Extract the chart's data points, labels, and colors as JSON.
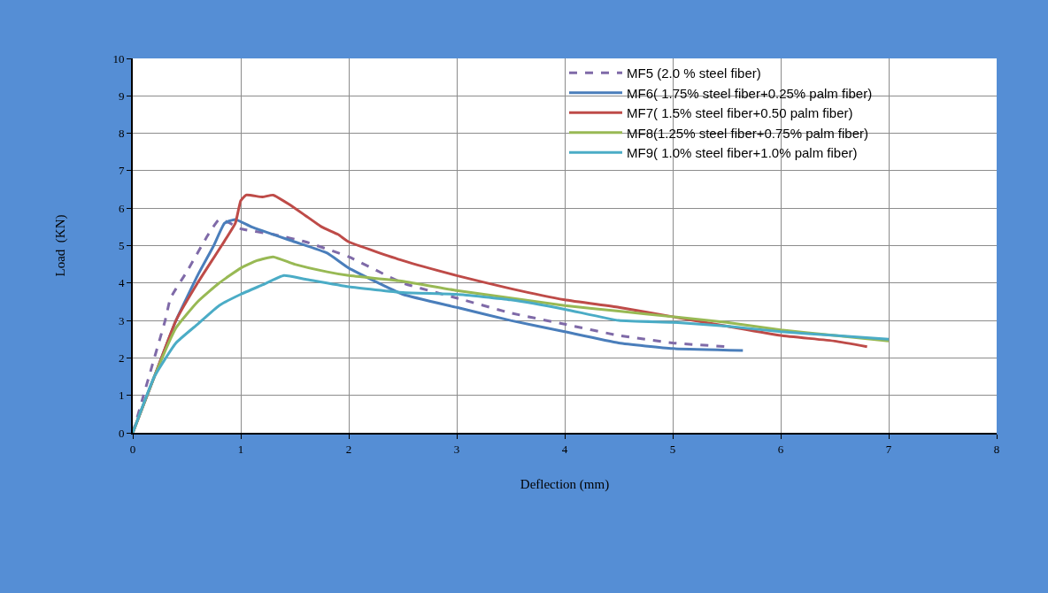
{
  "chart_data": {
    "type": "line",
    "xlabel": "Deflection (mm)",
    "ylabel": "Load  (KN)",
    "xlim": [
      0,
      8
    ],
    "xticks": [
      0,
      1,
      2,
      3,
      4,
      5,
      6,
      7,
      8
    ],
    "ylim": [
      0,
      10
    ],
    "yticks": [
      0,
      1,
      2,
      3,
      4,
      5,
      6,
      7,
      8,
      9,
      10
    ],
    "grid": true,
    "legend": "top right",
    "marker": "none",
    "series": [
      {
        "name": "MF5 (2.0 % steel fiber)",
        "color": "#7f6aa8",
        "line_style": "dashed",
        "x": [
          0,
          0.1,
          0.2,
          0.3,
          0.35,
          0.5,
          0.7,
          0.8,
          0.9,
          1.0,
          1.3,
          1.6,
          2,
          2.5,
          3,
          3.5,
          4,
          4.5,
          5,
          5.5
        ],
        "values": [
          0,
          1,
          2,
          3,
          3.6,
          4.3,
          5.3,
          5.7,
          5.6,
          5.45,
          5.3,
          5.1,
          4.7,
          4.0,
          3.6,
          3.2,
          2.9,
          2.6,
          2.4,
          2.3
        ]
      },
      {
        "name": "MF6( 1.75% steel fiber+0.25% palm fiber)",
        "color": "#4a7ebb",
        "line_style": "solid",
        "x": [
          0,
          0.2,
          0.4,
          0.6,
          0.75,
          0.85,
          0.95,
          1.1,
          1.5,
          1.8,
          2,
          2.5,
          3,
          3.5,
          4,
          4.5,
          5,
          5.65
        ],
        "values": [
          0,
          1.5,
          3,
          4.2,
          5,
          5.6,
          5.7,
          5.5,
          5.1,
          4.8,
          4.4,
          3.7,
          3.35,
          3.0,
          2.7,
          2.4,
          2.25,
          2.2
        ]
      },
      {
        "name": "MF7( 1.5% steel fiber+0.50 palm fiber)",
        "color": "#be4b48",
        "line_style": "solid",
        "x": [
          0,
          0.2,
          0.4,
          0.6,
          0.8,
          0.95,
          1.0,
          1.05,
          1.2,
          1.3,
          1.45,
          1.6,
          1.75,
          1.9,
          2,
          2.5,
          3,
          3.5,
          4,
          4.5,
          5,
          5.5,
          6,
          6.5,
          6.8
        ],
        "values": [
          0,
          1.5,
          3,
          4,
          4.9,
          5.6,
          6.2,
          6.35,
          6.3,
          6.35,
          6.1,
          5.8,
          5.5,
          5.3,
          5.1,
          4.6,
          4.2,
          3.85,
          3.55,
          3.35,
          3.1,
          2.85,
          2.6,
          2.45,
          2.3
        ]
      },
      {
        "name": "MF8(1.25% steel fiber+0.75% palm fiber)",
        "color": "#98b954",
        "line_style": "solid",
        "x": [
          0,
          0.2,
          0.4,
          0.6,
          0.8,
          1.0,
          1.15,
          1.3,
          1.5,
          1.8,
          2,
          2.5,
          3,
          3.5,
          4,
          4.5,
          5,
          5.5,
          6,
          6.5,
          7
        ],
        "values": [
          0,
          1.5,
          2.8,
          3.5,
          4.0,
          4.4,
          4.6,
          4.7,
          4.5,
          4.3,
          4.2,
          4.05,
          3.8,
          3.6,
          3.4,
          3.25,
          3.1,
          2.95,
          2.75,
          2.6,
          2.45
        ]
      },
      {
        "name": "MF9( 1.0% steel fiber+1.0% palm fiber)",
        "color": "#4bacc6",
        "line_style": "solid",
        "x": [
          0,
          0.2,
          0.4,
          0.6,
          0.8,
          1.0,
          1.2,
          1.4,
          1.6,
          2,
          2.5,
          3,
          3.5,
          4,
          4.5,
          5,
          5.5,
          6,
          6.5,
          7
        ],
        "values": [
          0,
          1.5,
          2.4,
          2.9,
          3.4,
          3.7,
          3.95,
          4.2,
          4.1,
          3.9,
          3.75,
          3.7,
          3.55,
          3.3,
          3.0,
          2.95,
          2.85,
          2.7,
          2.6,
          2.5
        ]
      }
    ]
  }
}
